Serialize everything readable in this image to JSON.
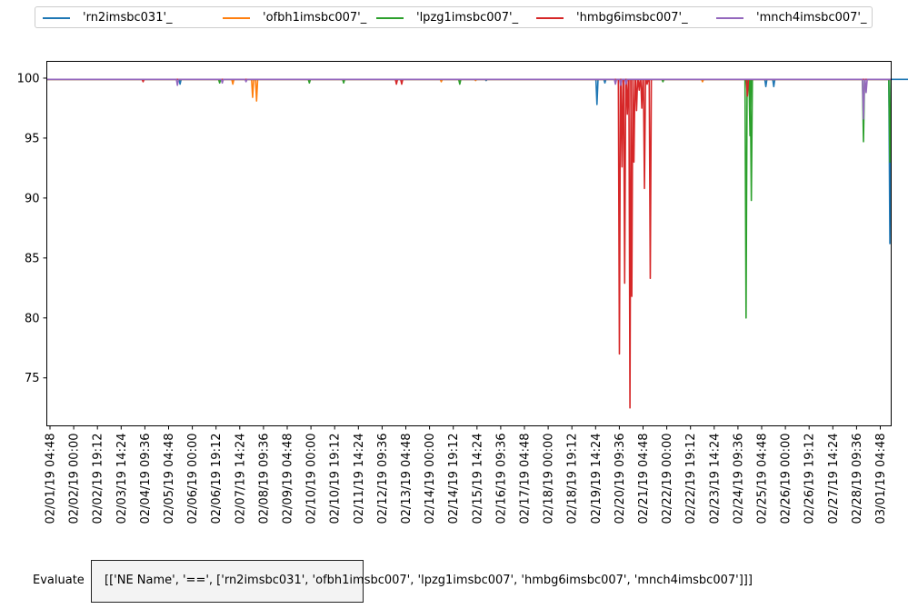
{
  "chart_data": {
    "type": "line",
    "title": "",
    "xlabel": "",
    "ylabel": "",
    "ylim": [
      71.0,
      101.4
    ],
    "xlim_days": [
      -0.05,
      28.5
    ],
    "y_ticks": [
      75,
      80,
      85,
      90,
      95,
      100
    ],
    "x_ticks": [
      "02/01/19 04:48",
      "02/02/19 00:00",
      "02/02/19 19:12",
      "02/03/19 14:24",
      "02/04/19 09:36",
      "02/05/19 04:48",
      "02/06/19 00:00",
      "02/06/19 19:12",
      "02/07/19 14:24",
      "02/08/19 09:36",
      "02/09/19 04:48",
      "02/10/19 00:00",
      "02/10/19 19:12",
      "02/11/19 14:24",
      "02/12/19 09:36",
      "02/13/19 04:48",
      "02/14/19 00:00",
      "02/14/19 19:12",
      "02/15/19 14:24",
      "02/16/19 09:36",
      "02/17/19 04:48",
      "02/18/19 00:00",
      "02/18/19 19:12",
      "02/19/19 14:24",
      "02/20/19 09:36",
      "02/21/19 04:48",
      "02/22/19 00:00",
      "02/22/19 19:12",
      "02/23/19 14:24",
      "02/24/19 09:36",
      "02/25/19 04:48",
      "02/26/19 00:00",
      "02/26/19 19:12",
      "02/27/19 14:24",
      "02/28/19 09:36",
      "03/01/19 04:48"
    ],
    "grid": false,
    "legend_position": "top",
    "series": [
      {
        "name": "'rn2imsbc031'_",
        "color": "#1f77b4",
        "baseline": 99.9,
        "dips": [
          [
            5.0,
            99.5
          ],
          [
            16.6,
            99.8
          ],
          [
            20.8,
            97.8
          ],
          [
            21.1,
            99.6
          ],
          [
            27.2,
            99.3
          ],
          [
            27.5,
            99.3
          ],
          [
            31.9,
            86.2
          ],
          [
            32.8,
            99.8
          ]
        ]
      },
      {
        "name": "'ofbh1imsbc007'_",
        "color": "#ff7f0e",
        "baseline": 99.9,
        "dips": [
          [
            7.0,
            99.5
          ],
          [
            7.75,
            98.4
          ],
          [
            7.9,
            98.1
          ],
          [
            14.9,
            99.7
          ],
          [
            16.2,
            99.8
          ],
          [
            24.8,
            99.7
          ]
        ]
      },
      {
        "name": "'lpzg1imsbc007'_",
        "color": "#2ca02c",
        "baseline": 99.9,
        "dips": [
          [
            6.5,
            99.6
          ],
          [
            9.9,
            99.6
          ],
          [
            11.2,
            99.6
          ],
          [
            15.6,
            99.5
          ],
          [
            21.5,
            99.7
          ],
          [
            23.3,
            99.7
          ],
          [
            26.45,
            80.0
          ],
          [
            26.6,
            95.2
          ],
          [
            26.65,
            89.8
          ],
          [
            30.9,
            94.7
          ],
          [
            31.9,
            93.0
          ]
        ]
      },
      {
        "name": "'hmbg6imsbc007'_",
        "color": "#d62728",
        "baseline": 99.9,
        "dips": [
          [
            3.6,
            99.7
          ],
          [
            13.2,
            99.5
          ],
          [
            13.4,
            99.5
          ],
          [
            21.65,
            77.0
          ],
          [
            21.75,
            92.6
          ],
          [
            21.85,
            82.9
          ],
          [
            21.95,
            97.0
          ],
          [
            22.05,
            72.5
          ],
          [
            22.12,
            81.8
          ],
          [
            22.2,
            93.0
          ],
          [
            22.3,
            97.3
          ],
          [
            22.4,
            99.0
          ],
          [
            22.5,
            97.5
          ],
          [
            22.6,
            90.8
          ],
          [
            22.7,
            99.5
          ],
          [
            22.82,
            83.3
          ],
          [
            26.5,
            98.5
          ]
        ]
      },
      {
        "name": "'mnch4imsbc007'_",
        "color": "#9467bd",
        "baseline": 99.9,
        "dips": [
          [
            4.9,
            99.4
          ],
          [
            6.6,
            99.6
          ],
          [
            7.5,
            99.7
          ],
          [
            21.5,
            99.5
          ],
          [
            21.7,
            99.4
          ],
          [
            21.9,
            99.5
          ],
          [
            30.9,
            96.6
          ],
          [
            31.0,
            98.8
          ]
        ]
      }
    ]
  },
  "filter": {
    "label": "Evaluate",
    "expression": "[['NE Name', '==', ['rn2imsbc031', 'ofbh1imsbc007', 'lpzg1imsbc007', 'hmbg6imsbc007', 'mnch4imsbc007']]]"
  }
}
